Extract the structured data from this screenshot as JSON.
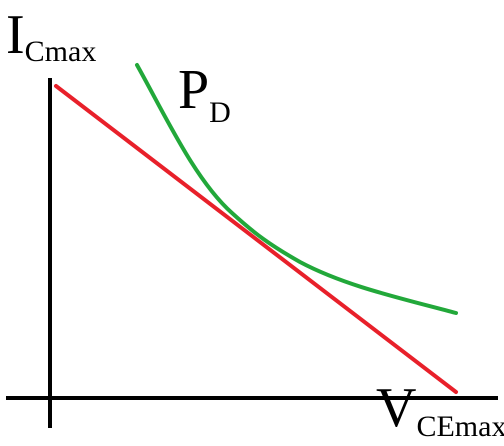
{
  "diagram": {
    "y_axis_label": {
      "main": "I",
      "subscript": "Cmax"
    },
    "x_axis_label": {
      "main": "V",
      "subscript": "CEmax"
    },
    "curve_label": {
      "main": "P",
      "subscript": "D"
    },
    "colors": {
      "axes": "#000000",
      "load_line": "#e8202a",
      "power_curve": "#22a83a"
    }
  }
}
